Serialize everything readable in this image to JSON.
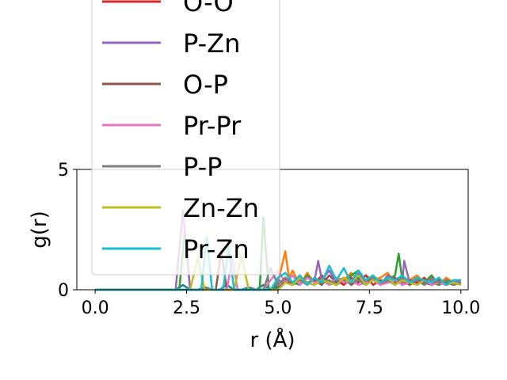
{
  "chart_data": {
    "type": "line",
    "xlabel": "r (Å)",
    "ylabel": "g(r)",
    "xlim": [
      -0.5,
      10.2
    ],
    "ylim": [
      0,
      5
    ],
    "xticks": [
      0.0,
      2.5,
      5.0,
      7.5,
      10.0
    ],
    "xtick_labels": [
      "0.0",
      "2.5",
      "5.0",
      "7.5",
      "10.0"
    ],
    "yticks": [
      0,
      5
    ],
    "ytick_labels": [
      "0",
      "5"
    ],
    "grid": false,
    "legend_placement": "upper-left, overflowing above the plot",
    "series": [
      {
        "name": "",
        "color": "#1f77b4",
        "x": [
          0,
          2.2,
          2.4,
          2.6,
          2.8,
          3.0,
          3.2,
          3.4,
          3.6,
          3.8,
          4.0,
          4.2,
          4.4,
          4.6,
          4.8,
          5.0,
          5.2,
          5.4,
          5.6,
          5.8,
          6.0,
          6.2,
          6.4,
          6.6,
          6.8,
          7.0,
          7.2,
          7.4,
          7.6,
          7.8,
          8.0,
          8.2,
          8.4,
          8.6,
          8.8,
          9.0,
          9.2,
          9.4,
          9.6,
          9.8,
          10.0
        ],
        "y": [
          0,
          0,
          0.2,
          0,
          0,
          0.1,
          0,
          0,
          0.2,
          0,
          0,
          0.1,
          0,
          0.2,
          0,
          0.1,
          0.3,
          0.2,
          0.4,
          0.3,
          0.2,
          0.5,
          0.3,
          0.2,
          0.4,
          0.3,
          0.5,
          0.2,
          0.4,
          0.3,
          0.5,
          0.2,
          0.4,
          0.3,
          0.2,
          0.4,
          0.3,
          0.2,
          0.4,
          0.3,
          0.4
        ]
      },
      {
        "name": "",
        "color": "#ff7f0e",
        "x": [
          0,
          4.8,
          5.0,
          5.2,
          5.3,
          5.4,
          5.6,
          5.8,
          6.0,
          6.2,
          6.4,
          6.6,
          6.8,
          7.0,
          7.2,
          7.4,
          7.6,
          7.8,
          8.0,
          8.2,
          8.4,
          8.6,
          8.8,
          9.0,
          9.2,
          9.4,
          9.6,
          9.8,
          10.0
        ],
        "y": [
          0,
          0,
          0.3,
          1.6,
          0.5,
          0.8,
          0.2,
          0.7,
          0.3,
          0.6,
          0.2,
          0.5,
          0.4,
          0.7,
          0.3,
          0.6,
          0.4,
          0.5,
          0.7,
          0.3,
          0.5,
          0.4,
          0.6,
          0.3,
          0.4,
          0.2,
          0.5,
          0.3,
          0.4
        ]
      },
      {
        "name": "",
        "color": "#2ca02c",
        "x": [
          0,
          2.3,
          2.45,
          2.6,
          4.5,
          4.6,
          4.75,
          5.0,
          5.2,
          5.4,
          5.6,
          5.8,
          6.0,
          6.2,
          6.4,
          6.6,
          6.8,
          7.0,
          7.2,
          7.4,
          7.6,
          7.8,
          8.0,
          8.2,
          8.3,
          8.4,
          8.6,
          8.8,
          9.0,
          9.2,
          9.4,
          9.6,
          9.8,
          10.0
        ],
        "y": [
          0,
          0,
          2.4,
          0,
          0,
          3.0,
          0,
          0.2,
          0.5,
          0.3,
          0.2,
          0.6,
          0.3,
          0.5,
          0.2,
          0.4,
          0.3,
          0.6,
          0.8,
          0.3,
          0.5,
          0.2,
          0.4,
          0.6,
          1.5,
          0.4,
          0.2,
          0.5,
          0.3,
          0.6,
          0.2,
          0.4,
          0.3,
          0.2
        ]
      },
      {
        "name": "O-O",
        "color": "#d62728",
        "x": [
          0,
          5.0,
          5.2,
          5.4,
          5.6,
          5.8,
          6.0,
          6.2,
          6.4,
          6.6,
          6.8,
          7.0,
          7.2,
          7.4,
          7.6,
          7.8,
          8.0,
          8.2,
          8.4,
          8.6,
          8.8,
          9.0,
          9.2,
          9.4,
          9.6,
          9.8,
          10.0
        ],
        "y": [
          0,
          0,
          0.4,
          0.2,
          0.5,
          0.3,
          0.2,
          0.6,
          0.3,
          0.4,
          0.2,
          0.5,
          0.3,
          0.6,
          0.2,
          0.4,
          0.3,
          0.5,
          0.2,
          0.4,
          0.3,
          0.5,
          0.2,
          0.3,
          0.4,
          0.2,
          0.3
        ]
      },
      {
        "name": "P-Zn",
        "color": "#9467bd",
        "x": [
          0,
          2.2,
          2.4,
          2.6,
          4.8,
          5.0,
          5.2,
          5.4,
          5.6,
          5.8,
          6.0,
          6.1,
          6.2,
          6.4,
          6.6,
          6.8,
          7.0,
          7.2,
          7.4,
          7.6,
          7.8,
          8.0,
          8.2,
          8.4,
          8.45,
          8.6,
          8.8,
          9.0,
          9.2,
          9.4,
          9.6,
          9.8,
          10.0
        ],
        "y": [
          0,
          0,
          3.3,
          0,
          0,
          0.4,
          0.3,
          0.6,
          0.2,
          0.5,
          0.4,
          1.2,
          0.4,
          0.8,
          0.3,
          0.5,
          0.2,
          0.7,
          0.3,
          0.5,
          0.2,
          0.6,
          0.4,
          0.3,
          1.2,
          0.3,
          0.5,
          0.2,
          0.4,
          0.3,
          0.2,
          0.4,
          0.3
        ]
      },
      {
        "name": "O-P",
        "color": "#8c564b",
        "x": [
          0,
          3.3,
          3.45,
          3.6,
          5.0,
          5.2,
          5.4,
          5.6,
          5.8,
          6.0,
          6.2,
          6.4,
          6.6,
          6.8,
          7.0,
          7.2,
          7.4,
          7.6,
          7.8,
          8.0,
          8.2,
          8.4,
          8.6,
          8.8,
          9.0,
          9.2,
          9.4,
          9.6,
          9.8,
          10.0
        ],
        "y": [
          0,
          0,
          1.6,
          0,
          0,
          0.3,
          0.2,
          0.5,
          0.3,
          0.4,
          0.2,
          0.6,
          0.3,
          0.5,
          0.2,
          0.4,
          0.3,
          0.5,
          0.2,
          0.4,
          0.3,
          0.5,
          0.2,
          0.4,
          0.3,
          0.2,
          0.4,
          0.3,
          0.2,
          0.3
        ]
      },
      {
        "name": "Pr-Pr",
        "color": "#e377c2",
        "x": [
          0,
          3.6,
          3.75,
          3.9,
          4.6,
          4.8,
          5.0,
          5.2,
          5.4,
          5.6,
          5.8,
          6.0,
          6.2,
          6.4,
          6.6,
          6.8,
          7.0,
          7.2,
          7.4,
          7.6,
          7.8,
          8.0,
          8.2,
          8.4,
          8.6,
          8.8,
          9.0,
          9.2,
          9.4,
          9.6,
          9.8,
          10.0
        ],
        "y": [
          0,
          0,
          1.3,
          0,
          0,
          0.4,
          0.8,
          0.3,
          0.6,
          0.2,
          0.5,
          0.3,
          0.4,
          0.2,
          0.5,
          0.3,
          0.4,
          0.2,
          0.3,
          0.4,
          0.2,
          0.3,
          0.4,
          0.2,
          0.3,
          0.2,
          0.4,
          0.2,
          0.3,
          0.2,
          0.3,
          0.2
        ]
      },
      {
        "name": "P-P",
        "color": "#7f7f7f",
        "x": [
          0,
          4.6,
          4.8,
          5.0,
          5.2,
          5.4,
          5.6,
          5.8,
          6.0,
          6.2,
          6.4,
          6.6,
          6.8,
          7.0,
          7.2,
          7.4,
          7.6,
          7.8,
          8.0,
          8.2,
          8.4,
          8.6,
          8.8,
          9.0,
          9.2,
          9.4,
          9.6,
          9.8,
          10.0
        ],
        "y": [
          0,
          0,
          0.9,
          0.2,
          0.5,
          0.3,
          0.4,
          0.2,
          0.5,
          0.3,
          0.4,
          0.2,
          0.5,
          0.3,
          0.4,
          0.2,
          0.5,
          0.3,
          0.4,
          0.2,
          0.5,
          0.3,
          0.4,
          0.2,
          0.5,
          0.3,
          0.4,
          0.2,
          0.3
        ]
      },
      {
        "name": "Zn-Zn",
        "color": "#bcbd22",
        "x": [
          0,
          2.6,
          2.8,
          3.0,
          3.8,
          4.0,
          4.2,
          5.0,
          5.2,
          5.4,
          5.6,
          5.8,
          6.0,
          6.2,
          6.4,
          6.6,
          6.8,
          7.0,
          7.2,
          7.4,
          7.6,
          7.8,
          8.0,
          8.2,
          8.4,
          8.6,
          8.8,
          9.0,
          9.2,
          9.4,
          9.6,
          9.8,
          10.0
        ],
        "y": [
          0,
          0,
          1.3,
          0,
          0,
          1.4,
          0,
          0,
          0.3,
          0.2,
          0.5,
          0.3,
          0.2,
          0.4,
          0.3,
          0.2,
          0.5,
          0.3,
          0.6,
          0.2,
          0.4,
          0.3,
          0.5,
          0.2,
          0.4,
          0.3,
          0.2,
          0.4,
          0.3,
          0.5,
          0.2,
          0.3,
          0.2
        ]
      },
      {
        "name": "Pr-Zn",
        "color": "#17becf",
        "x": [
          0,
          2.9,
          3.05,
          3.2,
          3.5,
          3.65,
          3.8,
          4.8,
          5.0,
          5.2,
          5.4,
          5.6,
          5.8,
          6.0,
          6.2,
          6.4,
          6.6,
          6.8,
          7.0,
          7.2,
          7.4,
          7.6,
          7.8,
          8.0,
          8.2,
          8.4,
          8.6,
          8.8,
          9.0,
          9.2,
          9.4,
          9.6,
          9.8,
          10.0
        ],
        "y": [
          0,
          0,
          2.2,
          0,
          0,
          1.8,
          0,
          0,
          0.5,
          0.7,
          0.3,
          0.6,
          0.2,
          0.5,
          0.3,
          1.0,
          0.4,
          0.9,
          0.3,
          0.8,
          0.4,
          0.6,
          0.3,
          0.5,
          0.4,
          0.6,
          0.3,
          0.5,
          0.4,
          0.3,
          0.5,
          0.2,
          0.4,
          0.4
        ]
      }
    ]
  }
}
